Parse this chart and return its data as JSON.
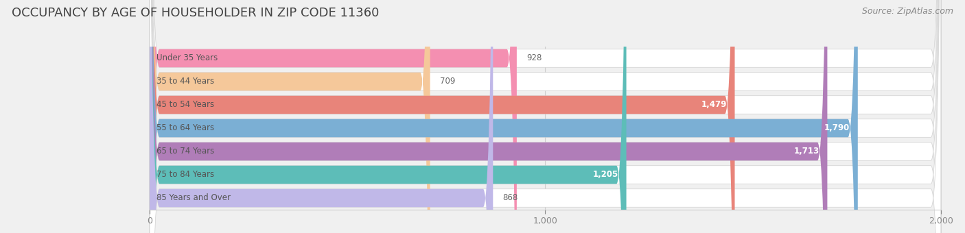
{
  "title": "OCCUPANCY BY AGE OF HOUSEHOLDER IN ZIP CODE 11360",
  "source": "Source: ZipAtlas.com",
  "categories": [
    "Under 35 Years",
    "35 to 44 Years",
    "45 to 54 Years",
    "55 to 64 Years",
    "65 to 74 Years",
    "75 to 84 Years",
    "85 Years and Over"
  ],
  "values": [
    928,
    709,
    1479,
    1790,
    1713,
    1205,
    868
  ],
  "bar_colors": [
    "#F48FB1",
    "#F5C89A",
    "#E8847A",
    "#7BAFD4",
    "#B07DB8",
    "#5DBDB8",
    "#C0B8E8"
  ],
  "xlim": [
    0,
    2000
  ],
  "xticks": [
    0,
    1000,
    2000
  ],
  "background_color": "#f0f0f0",
  "row_bg_color": "#e8e8e8",
  "title_fontsize": 13,
  "source_fontsize": 9,
  "label_fontsize": 8.5,
  "value_fontsize": 8.5,
  "value_inside_threshold": 1100
}
